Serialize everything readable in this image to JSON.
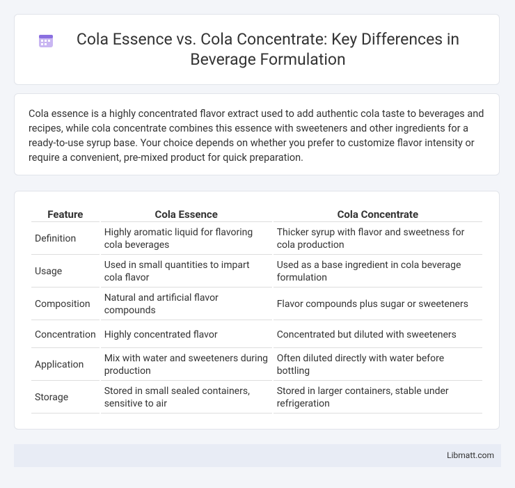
{
  "header": {
    "title": "Cola Essence vs. Cola Concentrate: Key Differences in Beverage Formulation"
  },
  "intro": "Cola essence is a highly concentrated flavor extract used to add authentic cola taste to beverages and recipes, while cola concentrate combines this essence with sweeteners and other ingredients for a ready-to-use syrup base. Your choice depends on whether you prefer to customize flavor intensity or require a convenient, pre-mixed product for quick preparation.",
  "table": {
    "columns": [
      "Feature",
      "Cola Essence",
      "Cola Concentrate"
    ],
    "rows": [
      [
        "Definition",
        "Highly aromatic liquid for flavoring cola beverages",
        "Thicker syrup with flavor and sweetness for cola production"
      ],
      [
        "Usage",
        "Used in small quantities to impart cola flavor",
        "Used as a base ingredient in cola beverage formulation"
      ],
      [
        "Composition",
        "Natural and artificial flavor compounds",
        "Flavor compounds plus sugar or sweeteners"
      ],
      [
        "Concentration",
        "Highly concentrated flavor",
        "Concentrated but diluted with sweeteners"
      ],
      [
        "Application",
        "Mix with water and sweeteners during production",
        "Often diluted directly with water before bottling"
      ],
      [
        "Storage",
        "Stored in small sealed containers, sensitive to air",
        "Stored in larger containers, stable under refrigeration"
      ]
    ]
  },
  "footer": "Libmatt.com"
}
